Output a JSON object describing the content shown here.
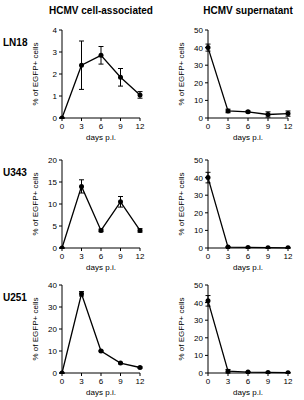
{
  "chart_data": [
    {
      "type": "line",
      "title": "HCMV cell-associated",
      "annotations": [
        "LN18"
      ],
      "x_label": "days p.i.",
      "y_label": "% of EGFP+ cells",
      "x": [
        0,
        3,
        6,
        9,
        12
      ],
      "values": [
        0,
        2.4,
        2.85,
        1.85,
        1.05
      ],
      "errors": [
        0,
        1.1,
        0.4,
        0.4,
        0.15
      ],
      "xlim": [
        0,
        12
      ],
      "xticks": [
        0,
        3,
        6,
        9,
        12
      ],
      "ylim": [
        0,
        4
      ],
      "yticks": [
        0,
        1,
        2,
        3,
        4
      ],
      "color": "#000000",
      "marker": "circle",
      "grid": false
    },
    {
      "type": "line",
      "title": "HCMV supernatant",
      "x_label": "days p.i.",
      "y_label": "% of EGFP+ cells",
      "x": [
        0,
        3,
        6,
        9,
        12
      ],
      "values": [
        40,
        4,
        3.5,
        2,
        2.5
      ],
      "errors": [
        2,
        1,
        0.5,
        1.5,
        1.5
      ],
      "xlim": [
        0,
        12
      ],
      "xticks": [
        0,
        3,
        6,
        9,
        12
      ],
      "ylim": [
        0,
        50
      ],
      "yticks": [
        0,
        10,
        20,
        30,
        40,
        50
      ],
      "color": "#000000",
      "marker": "circle",
      "grid": false
    },
    {
      "type": "line",
      "annotations": [
        "U343"
      ],
      "x_label": "days p.i.",
      "y_label": "% of EGFP+ cells",
      "x": [
        0,
        3,
        6,
        9,
        12
      ],
      "values": [
        0,
        14,
        4,
        10.5,
        4
      ],
      "errors": [
        0,
        1.5,
        0.3,
        1.2,
        0.4
      ],
      "xlim": [
        0,
        12
      ],
      "xticks": [
        0,
        3,
        6,
        9,
        12
      ],
      "ylim": [
        0,
        20
      ],
      "yticks": [
        0,
        5,
        10,
        15,
        20
      ],
      "color": "#000000",
      "marker": "circle",
      "grid": false
    },
    {
      "type": "line",
      "x_label": "days p.i.",
      "y_label": "% of EGFP+ cells",
      "x": [
        0,
        3,
        6,
        9,
        12
      ],
      "values": [
        40,
        0.5,
        0.3,
        0.2,
        0.1
      ],
      "errors": [
        3,
        0.2,
        0.1,
        0.1,
        0.1
      ],
      "xlim": [
        0,
        12
      ],
      "xticks": [
        0,
        3,
        6,
        9,
        12
      ],
      "ylim": [
        0,
        50
      ],
      "yticks": [
        0,
        10,
        20,
        30,
        40,
        50
      ],
      "color": "#000000",
      "marker": "circle",
      "grid": false
    },
    {
      "type": "line",
      "annotations": [
        "U251"
      ],
      "x_label": "days p.i.",
      "y_label": "% of EGFP+ cells",
      "x": [
        0,
        3,
        6,
        9,
        12
      ],
      "values": [
        0,
        36,
        10,
        4.5,
        2.5
      ],
      "errors": [
        0,
        1,
        0.3,
        0.3,
        0.3
      ],
      "xlim": [
        0,
        12
      ],
      "xticks": [
        0,
        3,
        6,
        9,
        12
      ],
      "ylim": [
        0,
        40
      ],
      "yticks": [
        0,
        10,
        20,
        30,
        40
      ],
      "color": "#000000",
      "marker": "circle",
      "grid": false
    },
    {
      "type": "line",
      "x_label": "days p.i.",
      "y_label": "% of EGFP+ cells",
      "x": [
        0,
        3,
        6,
        9,
        12
      ],
      "values": [
        41,
        1,
        0.5,
        0.3,
        0.2
      ],
      "errors": [
        3,
        1,
        0.2,
        0.1,
        0.1
      ],
      "xlim": [
        0,
        12
      ],
      "xticks": [
        0,
        3,
        6,
        9,
        12
      ],
      "ylim": [
        0,
        50
      ],
      "yticks": [
        0,
        10,
        20,
        30,
        40,
        50
      ],
      "color": "#000000",
      "marker": "circle",
      "grid": false
    }
  ]
}
